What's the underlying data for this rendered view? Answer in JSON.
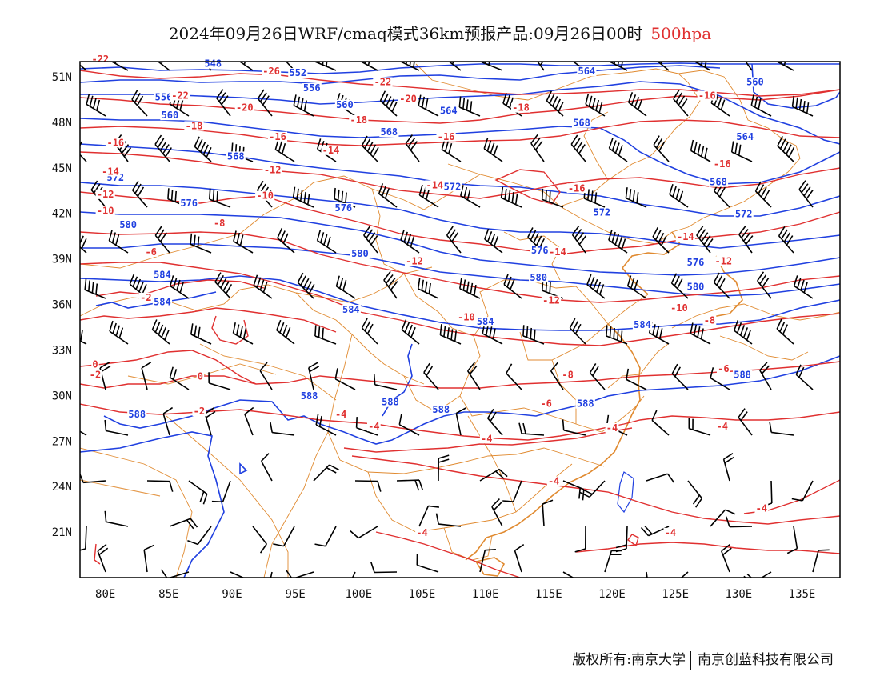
{
  "title": {
    "main": "2024年09月26日WRF/cmaq模式36km预报产品:09月26日00时",
    "level": "500hpa",
    "level_color": "#e03030"
  },
  "colors": {
    "geopotential": "#2040e0",
    "temperature": "#e03030",
    "boundaries": "#e08a30",
    "wind_barbs": "#000000",
    "frame": "#000000"
  },
  "axes": {
    "lon_ticks": [
      "80E",
      "85E",
      "90E",
      "95E",
      "100E",
      "105E",
      "110E",
      "115E",
      "120E",
      "125E",
      "130E",
      "135E"
    ],
    "lat_ticks": [
      "51N",
      "48N",
      "45N",
      "42N",
      "39N",
      "36N",
      "33N",
      "30N",
      "27N",
      "24N",
      "21N"
    ]
  },
  "chart_data": {
    "type": "map",
    "projection": "lat-lon",
    "lon_range": [
      78,
      138
    ],
    "lat_range": [
      18,
      52
    ],
    "geopotential_labels": [
      {
        "text": "548",
        "lon": 88.5,
        "lat": 51.7
      },
      {
        "text": "552",
        "lon": 95.2,
        "lat": 51.1
      },
      {
        "text": "556",
        "lon": 84.6,
        "lat": 49.5
      },
      {
        "text": "556",
        "lon": 96.3,
        "lat": 50.1
      },
      {
        "text": "560",
        "lon": 85.1,
        "lat": 48.3
      },
      {
        "text": "560",
        "lon": 98.9,
        "lat": 49.0
      },
      {
        "text": "564",
        "lon": 107.1,
        "lat": 48.6
      },
      {
        "text": "564",
        "lon": 118.0,
        "lat": 51.2
      },
      {
        "text": "560",
        "lon": 131.3,
        "lat": 50.5
      },
      {
        "text": "568",
        "lon": 102.4,
        "lat": 47.2
      },
      {
        "text": "568",
        "lon": 117.6,
        "lat": 47.8
      },
      {
        "text": "564",
        "lon": 130.5,
        "lat": 46.9
      },
      {
        "text": "568",
        "lon": 90.3,
        "lat": 45.6
      },
      {
        "text": "572",
        "lon": 80.8,
        "lat": 44.2
      },
      {
        "text": "572",
        "lon": 107.4,
        "lat": 43.6
      },
      {
        "text": "576",
        "lon": 86.6,
        "lat": 42.5
      },
      {
        "text": "576",
        "lon": 98.8,
        "lat": 42.2
      },
      {
        "text": "572",
        "lon": 119.2,
        "lat": 41.9
      },
      {
        "text": "568",
        "lon": 128.4,
        "lat": 43.9
      },
      {
        "text": "572",
        "lon": 130.4,
        "lat": 41.8
      },
      {
        "text": "580",
        "lon": 81.8,
        "lat": 41.1
      },
      {
        "text": "580",
        "lon": 100.1,
        "lat": 39.2
      },
      {
        "text": "576",
        "lon": 114.3,
        "lat": 39.4
      },
      {
        "text": "576",
        "lon": 126.6,
        "lat": 38.6
      },
      {
        "text": "584",
        "lon": 84.5,
        "lat": 37.8
      },
      {
        "text": "580",
        "lon": 114.2,
        "lat": 37.6
      },
      {
        "text": "580",
        "lon": 126.6,
        "lat": 37.0
      },
      {
        "text": "584",
        "lon": 84.5,
        "lat": 36.0
      },
      {
        "text": "584",
        "lon": 99.4,
        "lat": 35.5
      },
      {
        "text": "584",
        "lon": 110.0,
        "lat": 34.7
      },
      {
        "text": "584",
        "lon": 122.4,
        "lat": 34.5
      },
      {
        "text": "588",
        "lon": 96.1,
        "lat": 29.8
      },
      {
        "text": "588",
        "lon": 102.5,
        "lat": 29.4
      },
      {
        "text": "588",
        "lon": 106.5,
        "lat": 28.9
      },
      {
        "text": "588",
        "lon": 117.9,
        "lat": 29.3
      },
      {
        "text": "588",
        "lon": 82.5,
        "lat": 28.6
      },
      {
        "text": "588",
        "lon": 130.3,
        "lat": 31.2
      }
    ],
    "temperature_labels": [
      {
        "text": "-22",
        "lon": 79.6,
        "lat": 52.0
      },
      {
        "text": "-26",
        "lon": 93.1,
        "lat": 51.2
      },
      {
        "text": "-22",
        "lon": 85.9,
        "lat": 49.6
      },
      {
        "text": "-22",
        "lon": 101.9,
        "lat": 50.5
      },
      {
        "text": "-20",
        "lon": 91.0,
        "lat": 48.8
      },
      {
        "text": "-20",
        "lon": 103.9,
        "lat": 49.4
      },
      {
        "text": "-18",
        "lon": 112.8,
        "lat": 48.8
      },
      {
        "text": "-16",
        "lon": 127.5,
        "lat": 49.6
      },
      {
        "text": "-18",
        "lon": 87.0,
        "lat": 47.6
      },
      {
        "text": "-18",
        "lon": 100.0,
        "lat": 48.0
      },
      {
        "text": "-16",
        "lon": 80.8,
        "lat": 46.5
      },
      {
        "text": "-16",
        "lon": 93.6,
        "lat": 46.9
      },
      {
        "text": "-16",
        "lon": 106.9,
        "lat": 46.9
      },
      {
        "text": "-14",
        "lon": 97.8,
        "lat": 46.0
      },
      {
        "text": "-16",
        "lon": 128.7,
        "lat": 45.1
      },
      {
        "text": "-14",
        "lon": 80.4,
        "lat": 44.6
      },
      {
        "text": "-12",
        "lon": 93.2,
        "lat": 44.7
      },
      {
        "text": "-14",
        "lon": 106.0,
        "lat": 43.7
      },
      {
        "text": "-16",
        "lon": 117.2,
        "lat": 43.5
      },
      {
        "text": "-12",
        "lon": 80.0,
        "lat": 43.1
      },
      {
        "text": "-10",
        "lon": 80.0,
        "lat": 42.0
      },
      {
        "text": "-10",
        "lon": 92.6,
        "lat": 43.0
      },
      {
        "text": "-8",
        "lon": 89.0,
        "lat": 41.2
      },
      {
        "text": "-14",
        "lon": 125.8,
        "lat": 40.3
      },
      {
        "text": "-14",
        "lon": 115.7,
        "lat": 39.3
      },
      {
        "text": "-12",
        "lon": 104.4,
        "lat": 38.7
      },
      {
        "text": "-12",
        "lon": 128.8,
        "lat": 38.7
      },
      {
        "text": "-6",
        "lon": 83.6,
        "lat": 39.3
      },
      {
        "text": "-12",
        "lon": 115.2,
        "lat": 36.1
      },
      {
        "text": "-10",
        "lon": 125.3,
        "lat": 35.6
      },
      {
        "text": "-8",
        "lon": 127.7,
        "lat": 34.8
      },
      {
        "text": "-2",
        "lon": 83.2,
        "lat": 36.3
      },
      {
        "text": "-10",
        "lon": 108.5,
        "lat": 35.0
      },
      {
        "text": "0",
        "lon": 79.2,
        "lat": 31.9
      },
      {
        "text": "-2",
        "lon": 79.2,
        "lat": 31.2
      },
      {
        "text": "-6",
        "lon": 128.8,
        "lat": 31.6
      },
      {
        "text": "0",
        "lon": 87.5,
        "lat": 31.1
      },
      {
        "text": "-8",
        "lon": 116.5,
        "lat": 31.2
      },
      {
        "text": "-6",
        "lon": 114.8,
        "lat": 29.3
      },
      {
        "text": "-2",
        "lon": 87.4,
        "lat": 28.8
      },
      {
        "text": "-4",
        "lon": 98.6,
        "lat": 28.6
      },
      {
        "text": "-4",
        "lon": 101.2,
        "lat": 27.8
      },
      {
        "text": "-4",
        "lon": 110.1,
        "lat": 27.0
      },
      {
        "text": "-4",
        "lon": 120.0,
        "lat": 27.7
      },
      {
        "text": "-4",
        "lon": 128.7,
        "lat": 27.8
      },
      {
        "text": "-4",
        "lon": 115.4,
        "lat": 24.2
      },
      {
        "text": "-4",
        "lon": 131.8,
        "lat": 22.4
      },
      {
        "text": "-4",
        "lon": 105.0,
        "lat": 20.8
      },
      {
        "text": "-4",
        "lon": 124.6,
        "lat": 20.8
      }
    ]
  },
  "footer": {
    "copyright": "版权所有:南京大学",
    "company": "南京创蓝科技有限公司"
  }
}
